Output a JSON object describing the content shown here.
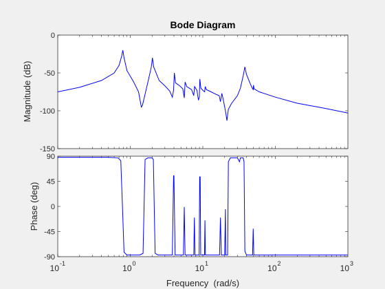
{
  "chart_data": {
    "type": "line",
    "title": "Bode Diagram",
    "xlabel": "Frequency  (rad/s)",
    "x_scale": "log",
    "xlim": [
      0.1,
      1000
    ],
    "x_ticks": [
      0.1,
      1,
      10,
      100,
      1000
    ],
    "x_tick_labels": [
      {
        "base": "10",
        "exp": "-1"
      },
      {
        "base": "10",
        "exp": "0"
      },
      {
        "base": "10",
        "exp": "1"
      },
      {
        "base": "10",
        "exp": "2"
      },
      {
        "base": "10",
        "exp": "3"
      }
    ],
    "line_color": "#0000ff",
    "axes_color": "#262626",
    "background_color": "#ffffff",
    "magnitude": {
      "ylabel": "Magnitude (dB)",
      "ylim": [
        -150,
        0
      ],
      "y_ticks": [
        0,
        -50,
        -100,
        -150
      ],
      "y_tick_labels": [
        "0",
        "-50",
        "-100",
        "-150"
      ],
      "points": [
        [
          0.1,
          -75
        ],
        [
          0.2,
          -69
        ],
        [
          0.4,
          -60
        ],
        [
          0.6,
          -50
        ],
        [
          0.7,
          -40
        ],
        [
          0.76,
          -28
        ],
        [
          0.79,
          -20
        ],
        [
          0.82,
          -30
        ],
        [
          0.9,
          -47
        ],
        [
          1.1,
          -61
        ],
        [
          1.3,
          -75
        ],
        [
          1.42,
          -95
        ],
        [
          1.47,
          -93
        ],
        [
          1.6,
          -78
        ],
        [
          1.8,
          -57
        ],
        [
          1.95,
          -42
        ],
        [
          2.02,
          -30
        ],
        [
          2.1,
          -42
        ],
        [
          2.5,
          -60
        ],
        [
          3.0,
          -67
        ],
        [
          3.5,
          -74
        ],
        [
          3.8,
          -82
        ],
        [
          3.95,
          -73
        ],
        [
          4.05,
          -50
        ],
        [
          4.2,
          -63
        ],
        [
          4.8,
          -67
        ],
        [
          5.3,
          -71
        ],
        [
          5.55,
          -83
        ],
        [
          5.7,
          -62
        ],
        [
          6.0,
          -68
        ],
        [
          7.0,
          -72
        ],
        [
          7.5,
          -80
        ],
        [
          7.7,
          -68
        ],
        [
          8.3,
          -73
        ],
        [
          8.7,
          -86
        ],
        [
          8.95,
          -82
        ],
        [
          9.1,
          -58
        ],
        [
          9.4,
          -70
        ],
        [
          10.0,
          -73
        ],
        [
          10.6,
          -75
        ],
        [
          10.8,
          -68
        ],
        [
          11.2,
          -72
        ],
        [
          13.0,
          -75
        ],
        [
          15.0,
          -78
        ],
        [
          16.8,
          -80
        ],
        [
          17.5,
          -88
        ],
        [
          18.3,
          -77
        ],
        [
          19.0,
          -84
        ],
        [
          20.5,
          -100
        ],
        [
          21.5,
          -113
        ],
        [
          22.5,
          -98
        ],
        [
          25.0,
          -90
        ],
        [
          30.0,
          -80
        ],
        [
          33.0,
          -70
        ],
        [
          36.0,
          -54
        ],
        [
          38.0,
          -42
        ],
        [
          40.0,
          -52
        ],
        [
          45.0,
          -64
        ],
        [
          48.0,
          -70
        ],
        [
          49.5,
          -72
        ],
        [
          50.0,
          -66
        ],
        [
          51.0,
          -71
        ],
        [
          60.0,
          -75
        ],
        [
          100.0,
          -82
        ],
        [
          200.0,
          -90
        ],
        [
          500.0,
          -97
        ],
        [
          1000.0,
          -103
        ]
      ]
    },
    "phase": {
      "ylabel": "Phase (deg)",
      "ylim": [
        -90,
        90
      ],
      "y_ticks": [
        90,
        45,
        0,
        -45,
        -90
      ],
      "y_tick_labels": [
        "90",
        "45",
        "0",
        "-45",
        "-90"
      ],
      "points": [
        [
          0.1,
          88
        ],
        [
          0.5,
          88
        ],
        [
          0.68,
          87
        ],
        [
          0.74,
          82
        ],
        [
          0.78,
          0
        ],
        [
          0.82,
          -82
        ],
        [
          0.9,
          -87
        ],
        [
          1.35,
          -87
        ],
        [
          1.5,
          -84
        ],
        [
          1.6,
          84
        ],
        [
          1.75,
          87
        ],
        [
          2.0,
          87
        ],
        [
          2.08,
          84
        ],
        [
          2.2,
          -84
        ],
        [
          2.4,
          -87
        ],
        [
          3.8,
          -87
        ],
        [
          3.95,
          55
        ],
        [
          4.0,
          55
        ],
        [
          4.15,
          -87
        ],
        [
          5.4,
          -87
        ],
        [
          5.55,
          -1
        ],
        [
          5.7,
          -87
        ],
        [
          7.5,
          -87
        ],
        [
          7.65,
          -20
        ],
        [
          7.8,
          -87
        ],
        [
          8.9,
          -87
        ],
        [
          9.05,
          53
        ],
        [
          9.2,
          53
        ],
        [
          9.35,
          -87
        ],
        [
          10.55,
          -87
        ],
        [
          10.7,
          -25
        ],
        [
          10.85,
          -87
        ],
        [
          17.0,
          -87
        ],
        [
          17.5,
          -20
        ],
        [
          18.0,
          -87
        ],
        [
          20.0,
          -87
        ],
        [
          20.5,
          -5
        ],
        [
          20.7,
          -87
        ],
        [
          22.0,
          -87
        ],
        [
          22.5,
          80
        ],
        [
          24.0,
          87
        ],
        [
          30.0,
          87
        ],
        [
          32.0,
          80
        ],
        [
          33.0,
          87
        ],
        [
          36.0,
          87
        ],
        [
          37.0,
          80
        ],
        [
          38.0,
          -80
        ],
        [
          40.0,
          -87
        ],
        [
          48.5,
          -87
        ],
        [
          49.5,
          -40
        ],
        [
          50.5,
          -87
        ],
        [
          55.0,
          -87
        ],
        [
          1000.0,
          -87
        ]
      ]
    }
  }
}
